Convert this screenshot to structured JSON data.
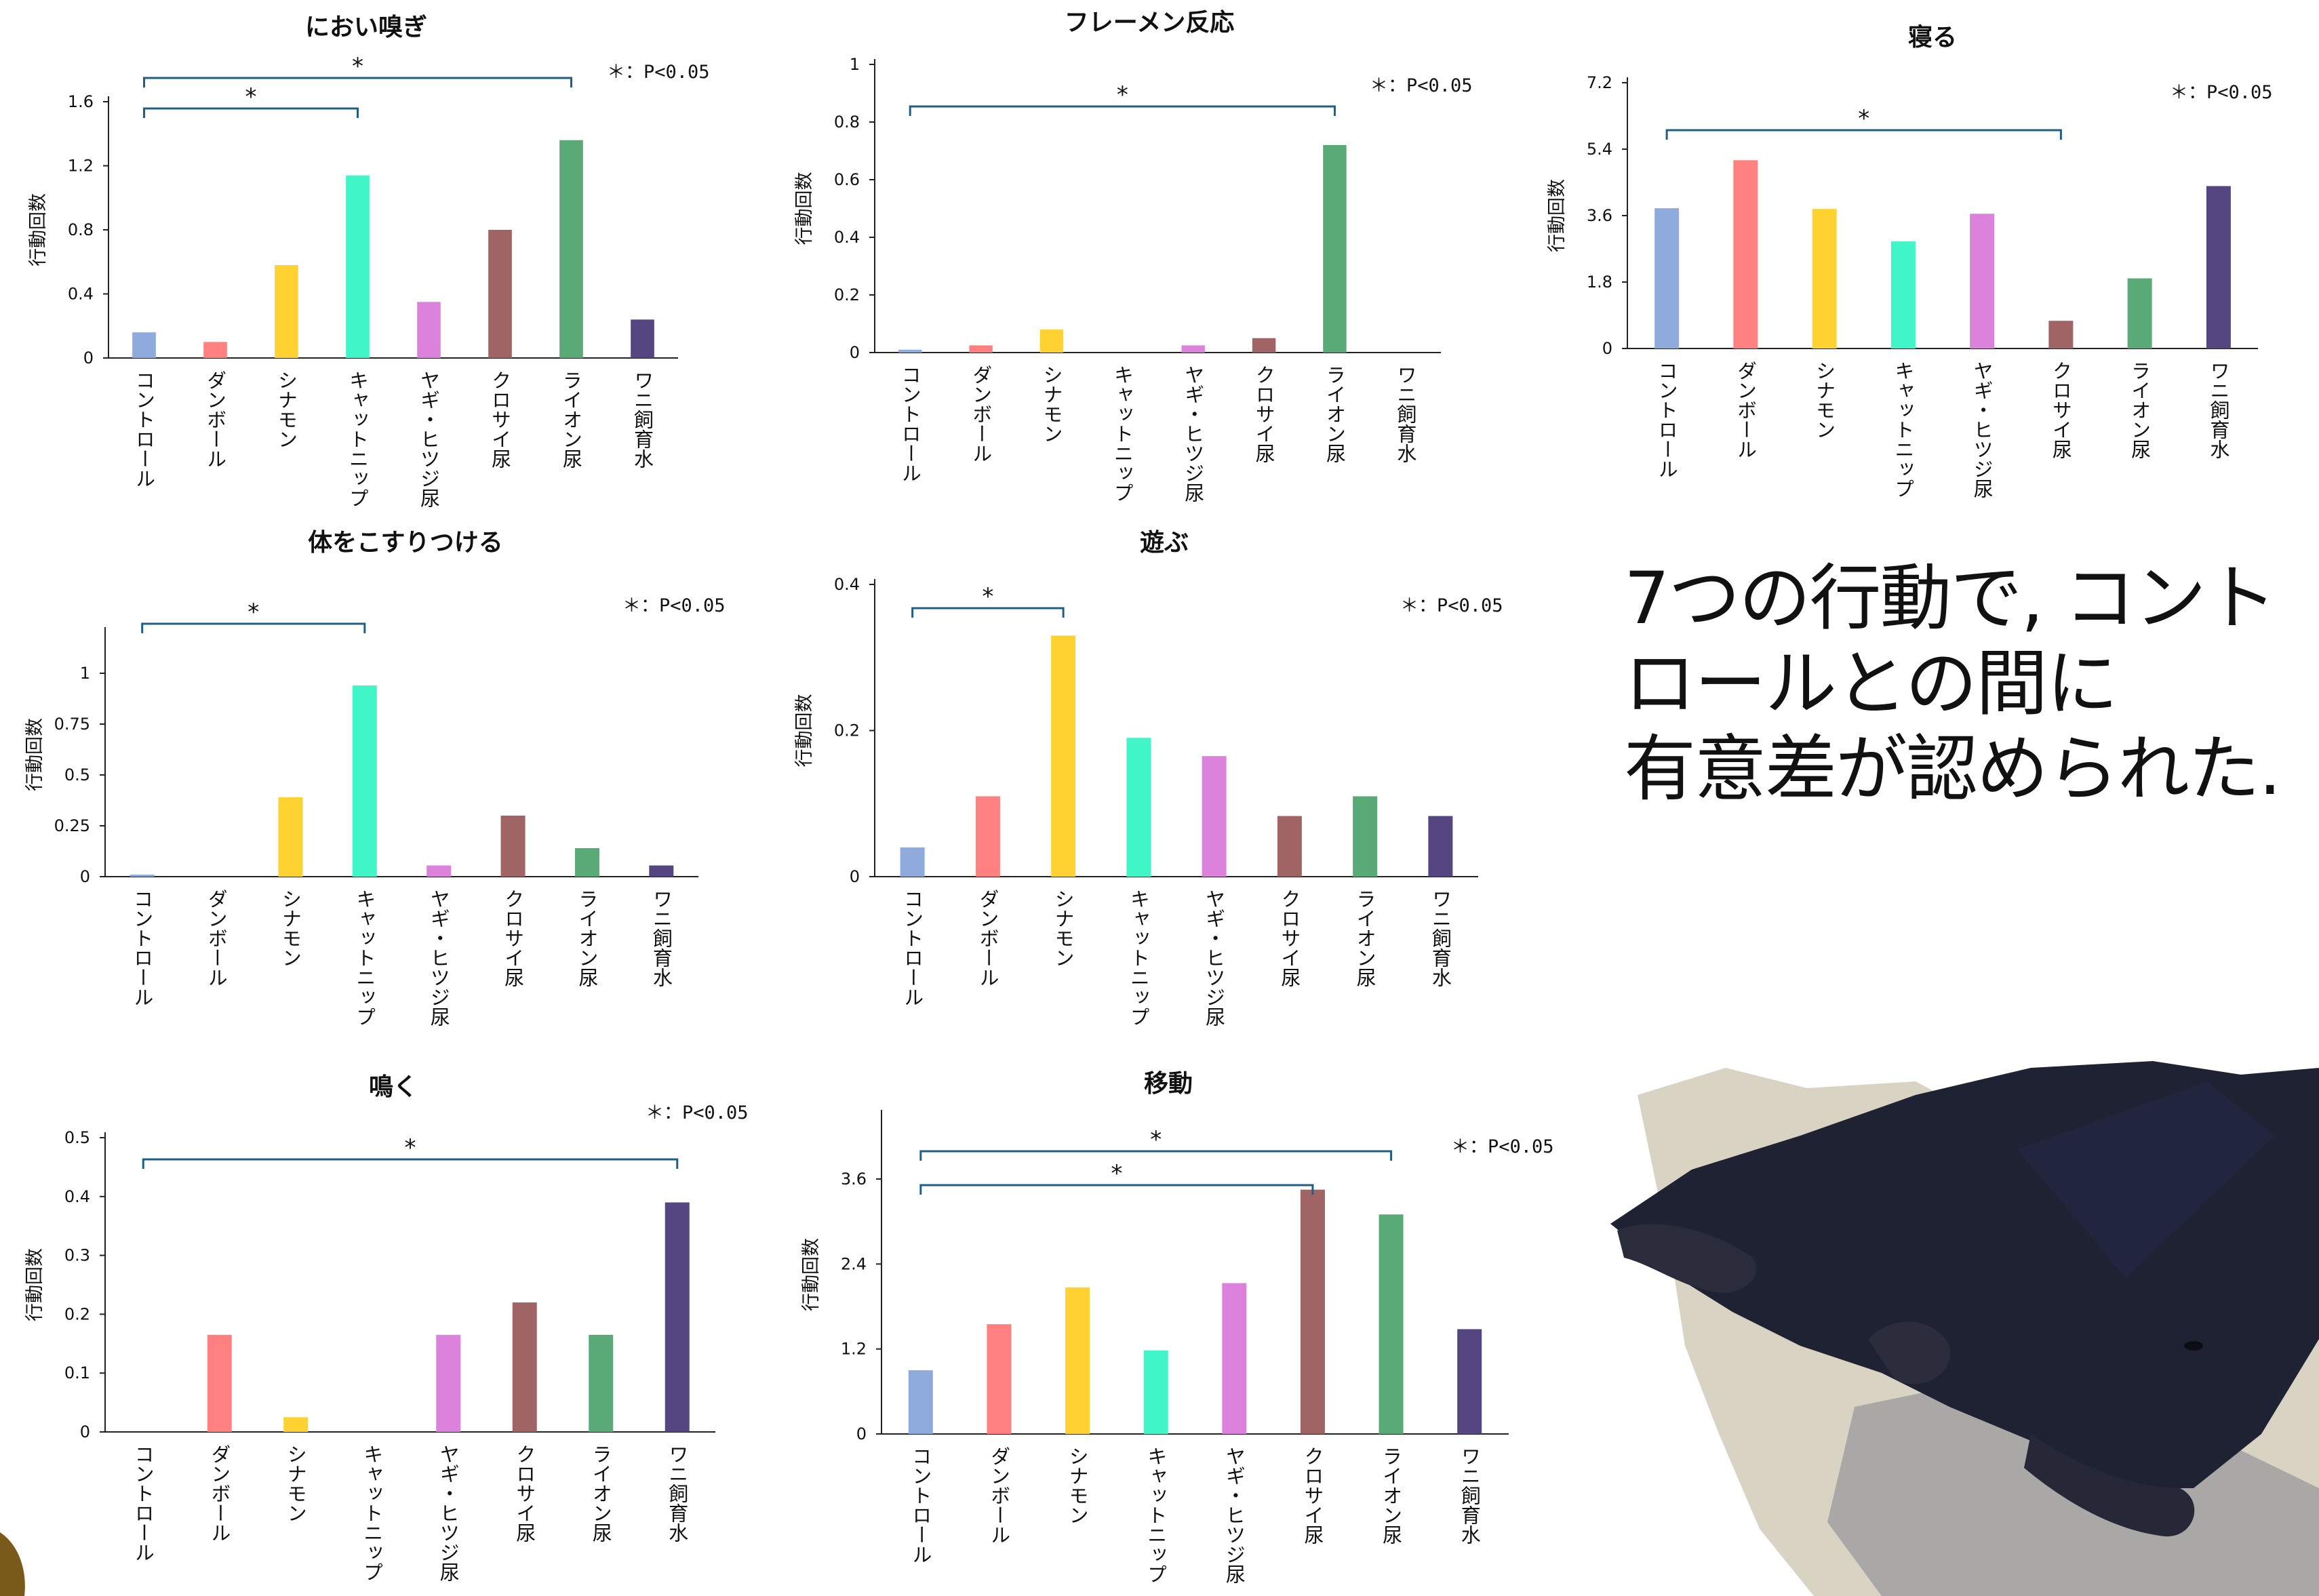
{
  "categories": [
    "コントロール",
    "ダンボール",
    "シナモン",
    "キャットニップ",
    "ヤギ・ヒツジ尿",
    "クロサイ尿",
    "ライオン尿",
    "ワニ飼育水"
  ],
  "colors": [
    "#8faadc",
    "#ff8080",
    "#ffd232",
    "#40f5c8",
    "#dc82dc",
    "#a06464",
    "#5aaa78",
    "#554682"
  ],
  "bracket_color": "#1f5f86",
  "significance_note": "＊：P<0.05",
  "message": [
    "7つの行動で, コント",
    "ロールとの間に",
    "有意差が認められた."
  ],
  "chart_data": [
    {
      "type": "bar",
      "title": "におい嗅ぎ",
      "ylabel": "行動回数",
      "ylim": [
        0,
        1.6
      ],
      "yticks": [
        "0",
        "0.4",
        "0.8",
        "1.2",
        "1.6"
      ],
      "values": [
        0.16,
        0.1,
        0.58,
        1.14,
        0.35,
        0.8,
        1.36,
        0.24
      ],
      "significance": [
        {
          "from": 0,
          "to": 6,
          "label": "*"
        },
        {
          "from": 0,
          "to": 3,
          "label": "*"
        }
      ]
    },
    {
      "type": "bar",
      "title": "フレーメン反応",
      "ylabel": "行動回数",
      "ylim": [
        0,
        1
      ],
      "yticks": [
        "0",
        "0.2",
        "0.4",
        "0.6",
        "0.8",
        "1"
      ],
      "values": [
        0.01,
        0.025,
        0.08,
        0,
        0.025,
        0.05,
        0.72,
        0
      ],
      "significance": [
        {
          "from": 0,
          "to": 6,
          "label": "*"
        }
      ]
    },
    {
      "type": "bar",
      "title": "寝る",
      "ylabel": "行動回数",
      "ylim": [
        0,
        7.2
      ],
      "yticks": [
        "0",
        "1.8",
        "3.6",
        "5.4",
        "7.2"
      ],
      "values": [
        3.8,
        5.1,
        3.78,
        2.9,
        3.65,
        0.75,
        1.9,
        4.4
      ],
      "significance": [
        {
          "from": 0,
          "to": 5,
          "label": "*"
        }
      ]
    },
    {
      "type": "bar",
      "title": "体をこすりつける",
      "ylabel": "行動回数",
      "ylim": [
        0,
        1.2
      ],
      "yticks": [
        "0",
        "0.25",
        "0.5",
        "0.75",
        "1"
      ],
      "values": [
        0.01,
        0,
        0.39,
        0.94,
        0.055,
        0.3,
        0.14,
        0.055
      ],
      "significance": [
        {
          "from": 0,
          "to": 3,
          "label": "*"
        }
      ]
    },
    {
      "type": "bar",
      "title": "遊ぶ",
      "ylabel": "行動回数",
      "ylim": [
        0,
        0.4
      ],
      "yticks": [
        "0",
        "0.2",
        "0.4"
      ],
      "values": [
        0.04,
        0.11,
        0.33,
        0.19,
        0.165,
        0.083,
        0.11,
        0.083
      ],
      "significance": [
        {
          "from": 0,
          "to": 2,
          "label": "*"
        }
      ]
    },
    {
      "type": "bar",
      "title": "鳴く",
      "ylabel": "行動回数",
      "ylim": [
        0,
        0.5
      ],
      "yticks": [
        "0",
        "0.1",
        "0.2",
        "0.3",
        "0.4",
        "0.5"
      ],
      "values": [
        0,
        0.165,
        0.025,
        0,
        0.165,
        0.22,
        0.165,
        0.39
      ],
      "significance": [
        {
          "from": 0,
          "to": 7,
          "label": "*"
        }
      ]
    },
    {
      "type": "bar",
      "title": "移動",
      "ylabel": "行動回数",
      "ylim": [
        0,
        4.5
      ],
      "yticks": [
        "0",
        "1.2",
        "2.4",
        "3.6"
      ],
      "values": [
        0.9,
        1.55,
        2.07,
        1.18,
        2.13,
        3.45,
        3.1,
        1.48
      ],
      "significance": [
        {
          "from": 0,
          "to": 6,
          "label": "*"
        },
        {
          "from": 0,
          "to": 5,
          "label": "*"
        }
      ]
    }
  ]
}
